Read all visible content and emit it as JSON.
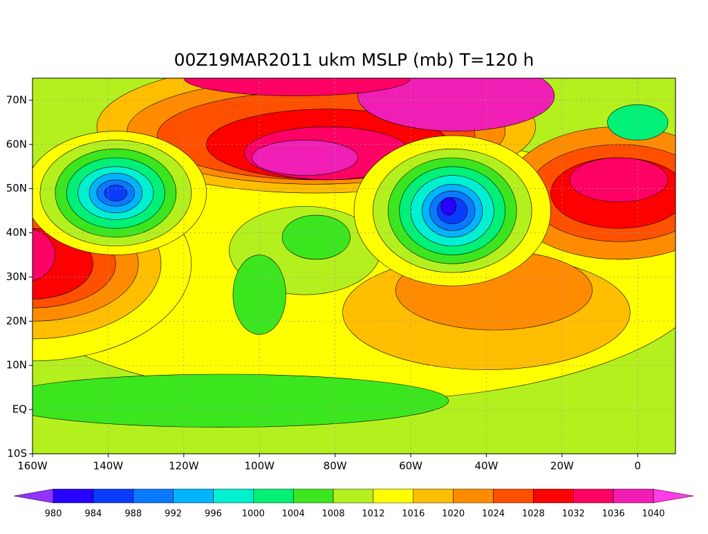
{
  "chart_data": {
    "type": "map",
    "title": "00Z19MAR2011 ukm MSLP (mb) T=120 h",
    "xlim": [
      -160,
      10
    ],
    "ylim": [
      -10,
      75
    ],
    "xticks": [
      {
        "value": -160,
        "label": "160W"
      },
      {
        "value": -140,
        "label": "140W"
      },
      {
        "value": -120,
        "label": "120W"
      },
      {
        "value": -100,
        "label": "100W"
      },
      {
        "value": -80,
        "label": "80W"
      },
      {
        "value": -60,
        "label": "60W"
      },
      {
        "value": -40,
        "label": "40W"
      },
      {
        "value": -20,
        "label": "20W"
      },
      0
    ],
    "yticks": [
      {
        "value": -10,
        "label": "10S"
      },
      {
        "value": 0,
        "label": "EQ"
      },
      {
        "value": 10,
        "label": "10N"
      },
      {
        "value": 20,
        "label": "20N"
      },
      {
        "value": 30,
        "label": "30N"
      },
      {
        "value": 40,
        "label": "40N"
      },
      {
        "value": 50,
        "label": "50N"
      },
      {
        "value": 60,
        "label": "60N"
      },
      {
        "value": 70,
        "label": "70N"
      }
    ],
    "grid": true,
    "colorbar": {
      "levels": [
        980,
        984,
        988,
        992,
        996,
        1000,
        1004,
        1008,
        1012,
        1016,
        1020,
        1024,
        1028,
        1032,
        1036,
        1040
      ],
      "under_color": "#9632ff",
      "over_color": "#ff3ce6",
      "colors": [
        "#2800ff",
        "#0a3cff",
        "#0a78ff",
        "#00b4ff",
        "#00f0d2",
        "#00f078",
        "#3ce61e",
        "#b4f01e",
        "#ffff00",
        "#ffbe00",
        "#ff8c00",
        "#ff5000",
        "#ff0000",
        "#ff0064",
        "#f01eb4"
      ]
    }
  }
}
